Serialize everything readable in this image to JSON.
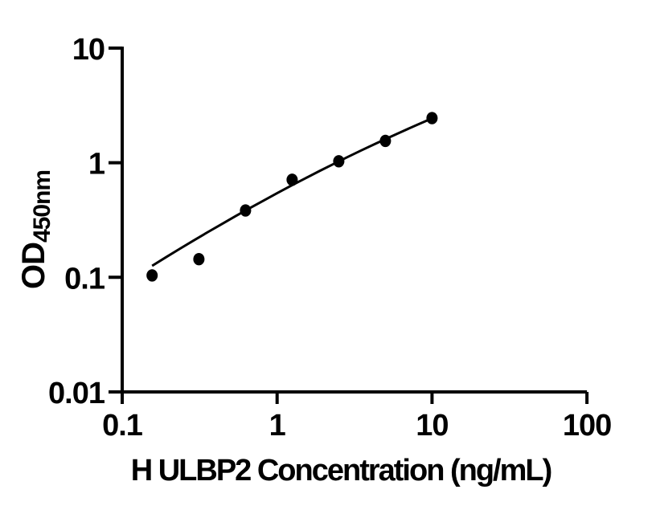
{
  "colors": {
    "ink": "#000000",
    "background": "#ffffff"
  },
  "chart_data": {
    "type": "scatter",
    "title": "",
    "xlabel": "H ULBP2 Concentration (ng/mL)",
    "ylabel": "OD",
    "ylabel_subscript": "450nm",
    "x_scale": "log",
    "y_scale": "log",
    "xlim": [
      0.1,
      100
    ],
    "ylim": [
      0.01,
      10
    ],
    "grid": false,
    "legend": "none",
    "x_ticks": [
      {
        "value": 0.1,
        "label": "0.1"
      },
      {
        "value": 1,
        "label": "1"
      },
      {
        "value": 10,
        "label": "10"
      },
      {
        "value": 100,
        "label": "100"
      }
    ],
    "y_ticks": [
      {
        "value": 10,
        "label": "10"
      },
      {
        "value": 1,
        "label": "1"
      },
      {
        "value": 0.1,
        "label": "0.1"
      },
      {
        "value": 0.01,
        "label": "0.01"
      }
    ],
    "series": [
      {
        "name": "standard-points",
        "type": "scatter",
        "marker": "filled-circle",
        "color": "#000000",
        "points": [
          [
            0.156,
            0.104
          ],
          [
            0.3125,
            0.144
          ],
          [
            0.625,
            0.383
          ],
          [
            1.25,
            0.71
          ],
          [
            2.5,
            1.03
          ],
          [
            5,
            1.55
          ],
          [
            10,
            2.45
          ]
        ]
      },
      {
        "name": "fit-curve",
        "type": "line",
        "color": "#000000",
        "points": [
          [
            0.156,
            0.126
          ],
          [
            0.192,
            0.15
          ],
          [
            0.236,
            0.178
          ],
          [
            0.29,
            0.21
          ],
          [
            0.357,
            0.248
          ],
          [
            0.44,
            0.292
          ],
          [
            0.541,
            0.343
          ],
          [
            0.665,
            0.401
          ],
          [
            0.819,
            0.468
          ],
          [
            1.007,
            0.545
          ],
          [
            1.239,
            0.633
          ],
          [
            1.524,
            0.732
          ],
          [
            1.875,
            0.846
          ],
          [
            2.307,
            0.973
          ],
          [
            2.838,
            1.117
          ],
          [
            3.491,
            1.279
          ],
          [
            4.295,
            1.461
          ],
          [
            5.285,
            1.663
          ],
          [
            6.501,
            1.888
          ],
          [
            7.998,
            2.138
          ],
          [
            10.0,
            2.438
          ]
        ]
      }
    ]
  }
}
